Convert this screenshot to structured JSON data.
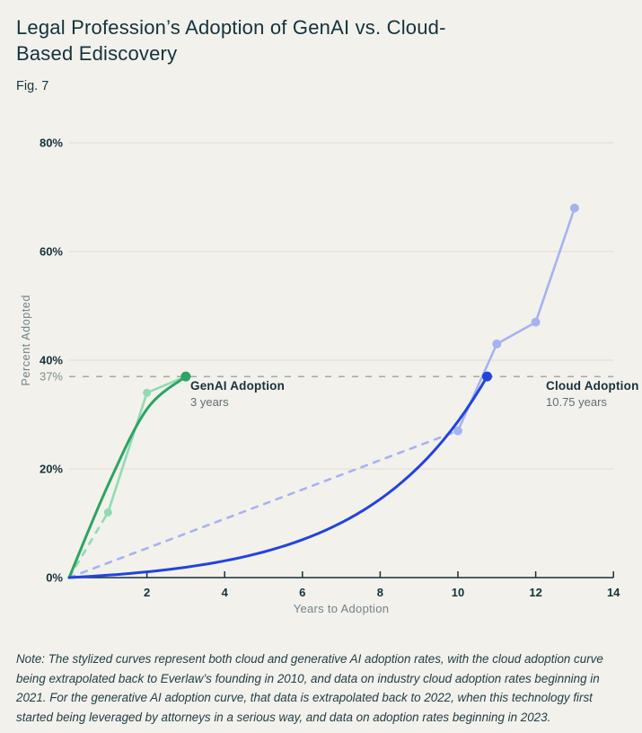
{
  "header": {
    "title": "Legal Profession’s Adoption of GenAI vs. Cloud-Based Ediscovery",
    "figure_label": "Fig. 7"
  },
  "chart_data": {
    "type": "line",
    "title": "Legal Profession’s Adoption of GenAI vs. Cloud-Based Ediscovery",
    "xlabel": "Years to Adoption",
    "ylabel": "Percent Adopted",
    "xlim": [
      0,
      14
    ],
    "ylim": [
      0,
      80
    ],
    "x_ticks": [
      2,
      4,
      6,
      8,
      10,
      12,
      14
    ],
    "y_ticks": [
      0,
      20,
      40,
      60,
      80
    ],
    "grid": "horizontal",
    "legend_position": "none",
    "threshold": {
      "value": 37,
      "label": "37%"
    },
    "series": [
      {
        "id": "genai-data",
        "name": "GenAI adoption data (extrapolated back to 2022, data from 2023)",
        "type": "data",
        "color": "#8fdcb3",
        "extrapolated_from_origin": true,
        "origin": [
          0,
          0
        ],
        "line": [
          [
            1,
            12
          ],
          [
            2,
            34
          ],
          [
            3,
            37
          ]
        ],
        "markers": [
          [
            1,
            12
          ],
          [
            2,
            34
          ]
        ],
        "marker_radius": 4.5
      },
      {
        "id": "genai-curve",
        "name": "GenAI Adoption stylized curve",
        "type": "smooth",
        "color": "#2ca463",
        "points": [
          [
            0,
            0
          ],
          [
            1,
            17
          ],
          [
            2,
            31
          ],
          [
            3,
            37
          ]
        ],
        "end_marker": [
          3,
          37
        ],
        "end_marker_radius": 5.5
      },
      {
        "id": "cloud-data",
        "name": "Cloud adoption data (extrapolated back to 2010, data from 2021)",
        "type": "data",
        "color": "#a6b3f1",
        "extrapolated_from_origin": true,
        "origin": [
          0,
          0
        ],
        "line": [
          [
            10,
            27
          ],
          [
            11,
            43
          ],
          [
            12,
            47
          ],
          [
            13,
            68
          ]
        ],
        "markers": [
          [
            10,
            27
          ],
          [
            11,
            43
          ],
          [
            12,
            47
          ],
          [
            13,
            68
          ]
        ],
        "marker_radius": 5
      },
      {
        "id": "cloud-curve",
        "name": "Cloud Adoption stylized curve",
        "type": "exponential",
        "color": "#2144dd",
        "k": 3.5,
        "end": [
          10.75,
          37
        ],
        "end_marker": [
          10.75,
          37
        ],
        "end_marker_radius": 5.5
      }
    ],
    "annotations": [
      {
        "title": "GenAI Adoption",
        "subtitle": "3 years"
      },
      {
        "title": "Cloud Adoption",
        "subtitle": "10.75 years"
      }
    ]
  },
  "note": "Note: The stylized curves represent both cloud and generative AI adoption rates, with the cloud adoption curve being extrapolated back to Everlaw’s founding in 2010, and data on industry cloud adoption rates beginning in 2021. For the generative AI adoption curve, that data is extrapolated back to 2022, when this technology first started being leveraged by attorneys in a serious way, and data on adoption rates beginning in 2023.",
  "colors": {
    "background": "#f3f1eb",
    "title_text": "#12333e",
    "axis_text": "#14323c",
    "muted_text": "#7f8e91",
    "gridline": "#dcdad2",
    "threshold_line": "#98a4a0",
    "genai_dark": "#2ca463",
    "genai_light": "#8fdcb3",
    "cloud_dark": "#2144dd",
    "cloud_light": "#a6b3f1"
  }
}
